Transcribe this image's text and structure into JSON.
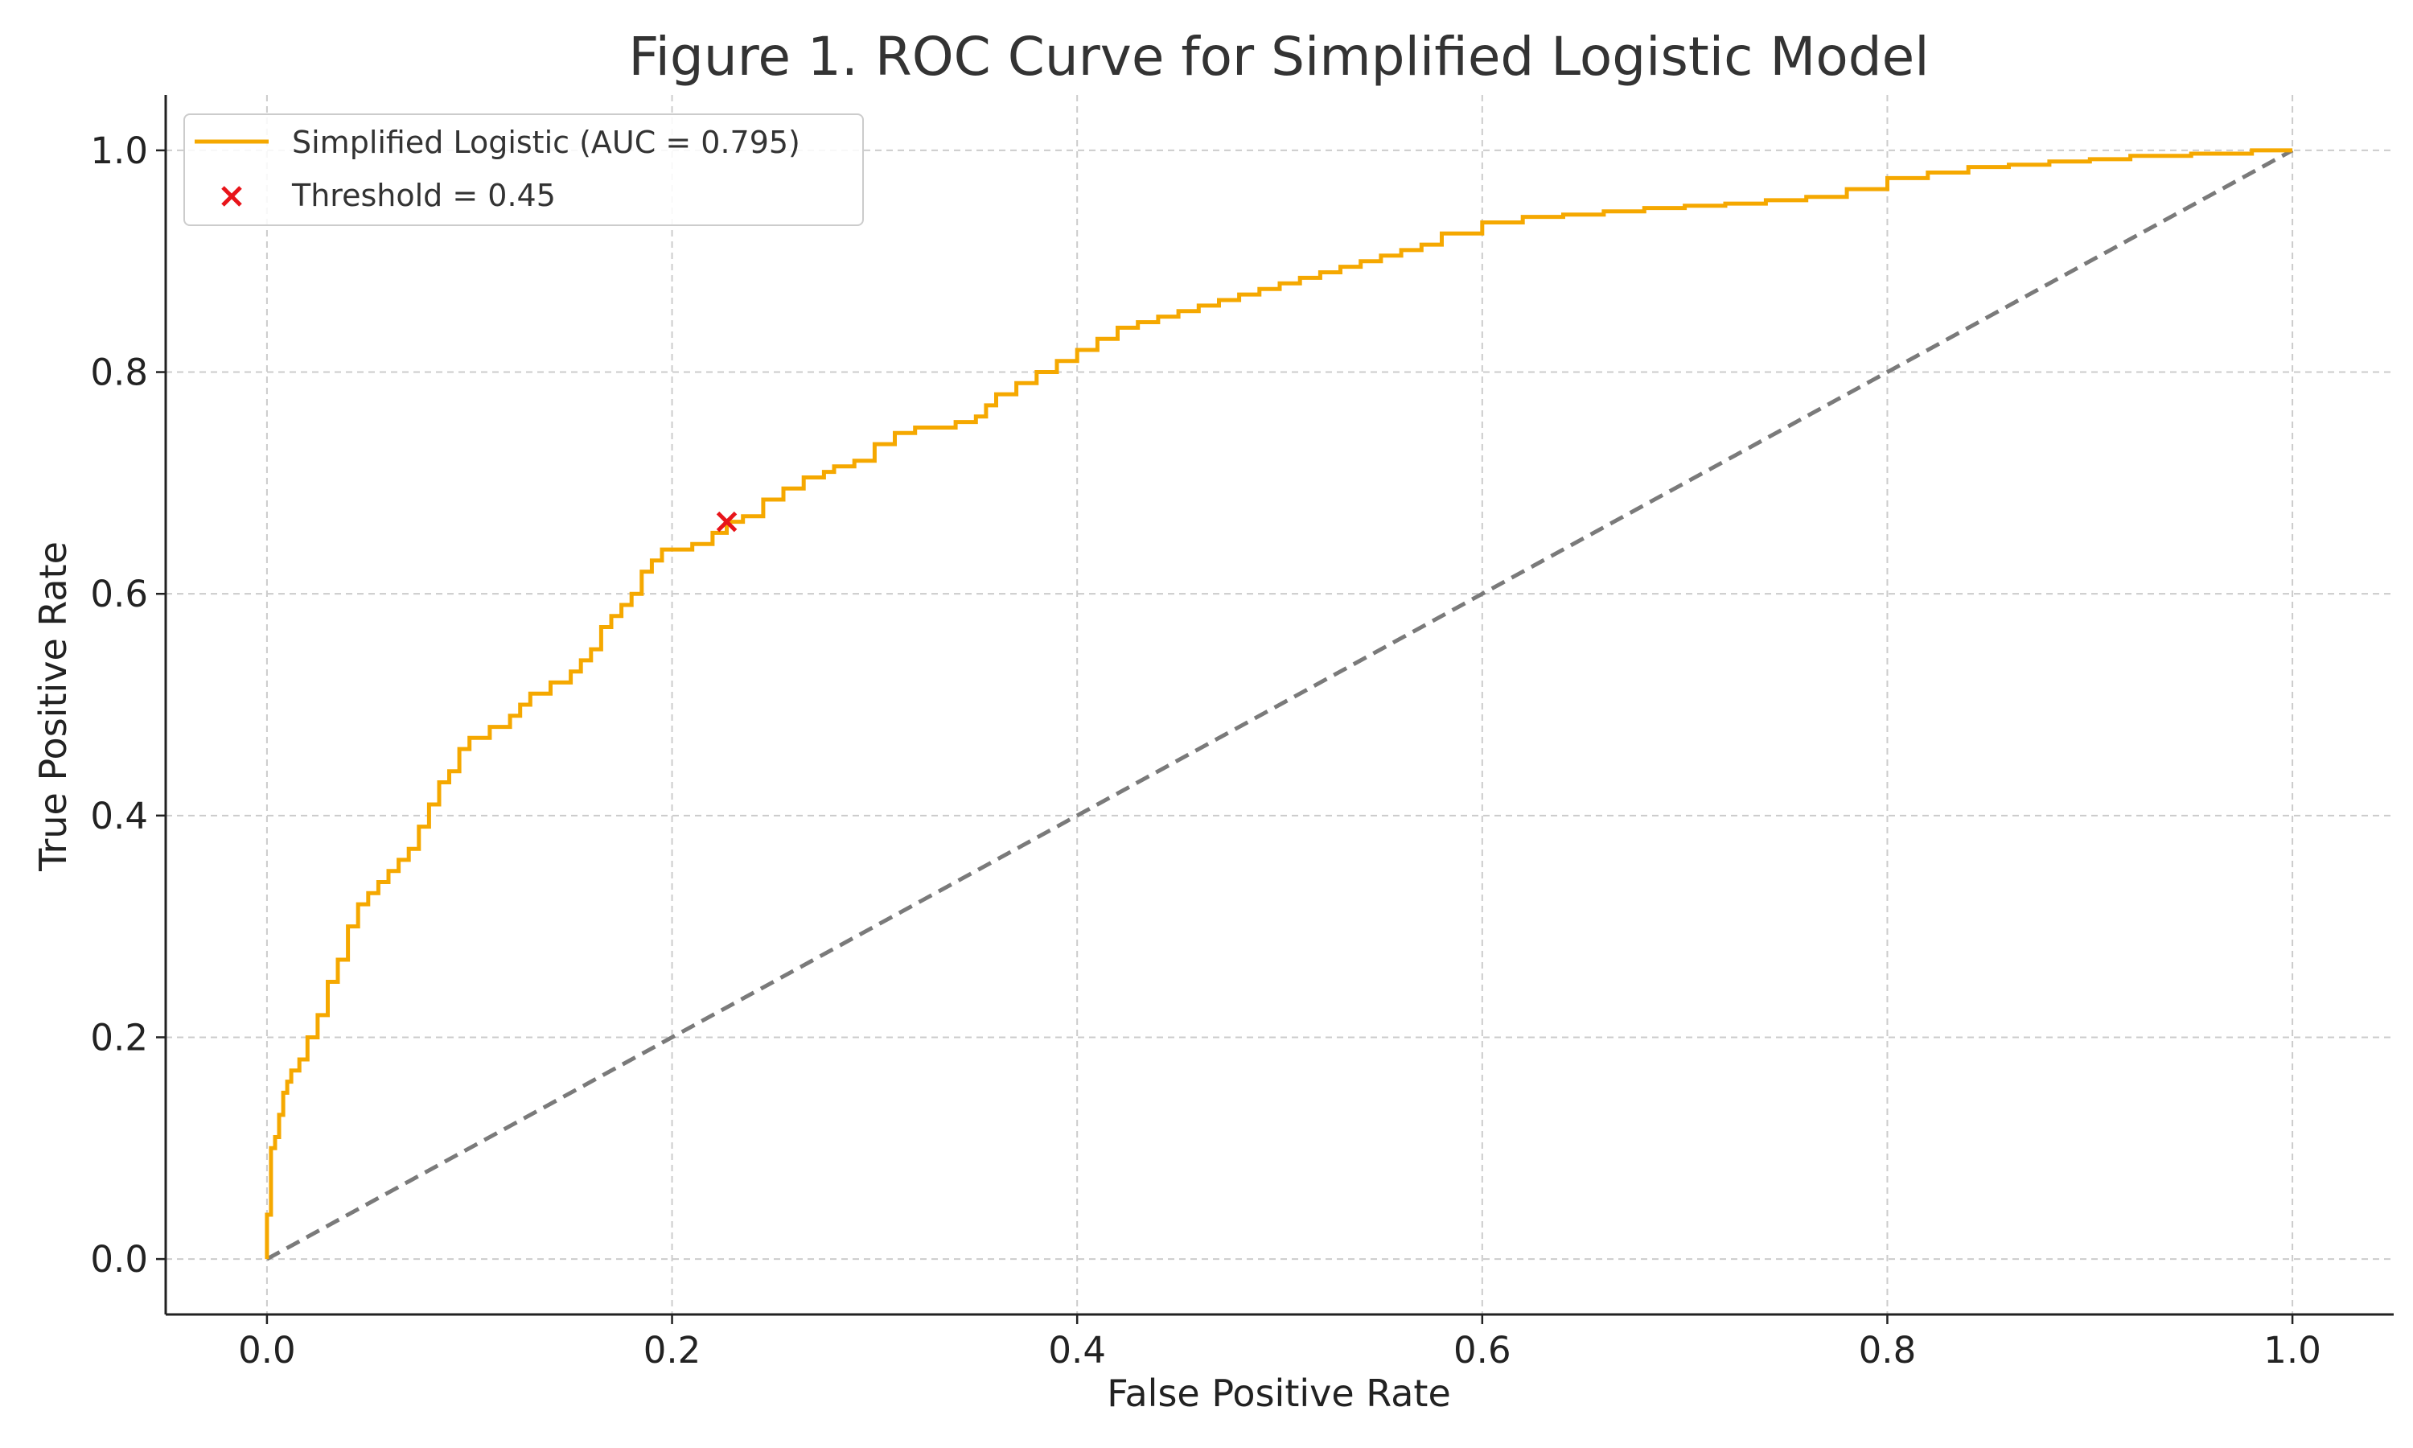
{
  "chart_data": {
    "type": "line",
    "title": "Figure 1. ROC Curve for Simplified Logistic Model",
    "xlabel": "False Positive Rate",
    "ylabel": "True Positive Rate",
    "xlim": [
      -0.05,
      1.05
    ],
    "ylim": [
      -0.05,
      1.05
    ],
    "xticks": [
      0.0,
      0.2,
      0.4,
      0.6,
      0.8,
      1.0
    ],
    "xtick_labels": [
      "0.0",
      "0.2",
      "0.4",
      "0.6",
      "0.8",
      "1.0"
    ],
    "yticks": [
      0.0,
      0.2,
      0.4,
      0.6,
      0.8,
      1.0
    ],
    "ytick_labels": [
      "0.0",
      "0.2",
      "0.4",
      "0.6",
      "0.8",
      "1.0"
    ],
    "grid": true,
    "legend_position": "top-left",
    "series": [
      {
        "name": "Simplified Logistic (AUC = 0.795)",
        "kind": "step-line",
        "color": "#f5a800",
        "x": [
          0.0,
          0.0,
          0.002,
          0.004,
          0.006,
          0.008,
          0.01,
          0.012,
          0.016,
          0.02,
          0.025,
          0.03,
          0.035,
          0.04,
          0.045,
          0.05,
          0.055,
          0.06,
          0.065,
          0.07,
          0.075,
          0.08,
          0.085,
          0.09,
          0.095,
          0.1,
          0.11,
          0.12,
          0.125,
          0.13,
          0.135,
          0.14,
          0.145,
          0.15,
          0.155,
          0.16,
          0.165,
          0.17,
          0.175,
          0.18,
          0.185,
          0.19,
          0.195,
          0.2,
          0.21,
          0.22,
          0.227,
          0.235,
          0.245,
          0.255,
          0.265,
          0.275,
          0.28,
          0.29,
          0.3,
          0.31,
          0.32,
          0.33,
          0.34,
          0.35,
          0.355,
          0.36,
          0.37,
          0.38,
          0.39,
          0.4,
          0.41,
          0.42,
          0.43,
          0.44,
          0.45,
          0.46,
          0.47,
          0.48,
          0.49,
          0.5,
          0.51,
          0.52,
          0.53,
          0.54,
          0.55,
          0.56,
          0.57,
          0.58,
          0.6,
          0.62,
          0.64,
          0.66,
          0.68,
          0.7,
          0.72,
          0.74,
          0.76,
          0.78,
          0.8,
          0.82,
          0.84,
          0.86,
          0.88,
          0.9,
          0.92,
          0.95,
          0.98,
          1.0
        ],
        "y": [
          0.0,
          0.04,
          0.1,
          0.11,
          0.13,
          0.15,
          0.16,
          0.17,
          0.18,
          0.2,
          0.22,
          0.25,
          0.27,
          0.3,
          0.32,
          0.33,
          0.34,
          0.35,
          0.36,
          0.37,
          0.39,
          0.41,
          0.43,
          0.44,
          0.46,
          0.47,
          0.48,
          0.49,
          0.5,
          0.51,
          0.51,
          0.52,
          0.52,
          0.53,
          0.54,
          0.55,
          0.57,
          0.58,
          0.59,
          0.6,
          0.62,
          0.63,
          0.64,
          0.64,
          0.645,
          0.655,
          0.665,
          0.67,
          0.685,
          0.695,
          0.705,
          0.71,
          0.715,
          0.72,
          0.735,
          0.745,
          0.75,
          0.75,
          0.755,
          0.76,
          0.77,
          0.78,
          0.79,
          0.8,
          0.81,
          0.82,
          0.83,
          0.84,
          0.845,
          0.85,
          0.855,
          0.86,
          0.865,
          0.87,
          0.875,
          0.88,
          0.885,
          0.89,
          0.895,
          0.9,
          0.905,
          0.91,
          0.915,
          0.925,
          0.935,
          0.94,
          0.942,
          0.945,
          0.948,
          0.95,
          0.952,
          0.955,
          0.958,
          0.965,
          0.975,
          0.98,
          0.985,
          0.987,
          0.99,
          0.992,
          0.995,
          0.997,
          1.0,
          1.0
        ]
      },
      {
        "name": "",
        "kind": "diagonal",
        "color": "#7a7a7a",
        "x": [
          0.0,
          1.0
        ],
        "y": [
          0.0,
          1.0
        ]
      },
      {
        "name": "Threshold = 0.45",
        "kind": "marker",
        "color": "#e8141a",
        "x": [
          0.227
        ],
        "y": [
          0.665
        ]
      }
    ]
  }
}
